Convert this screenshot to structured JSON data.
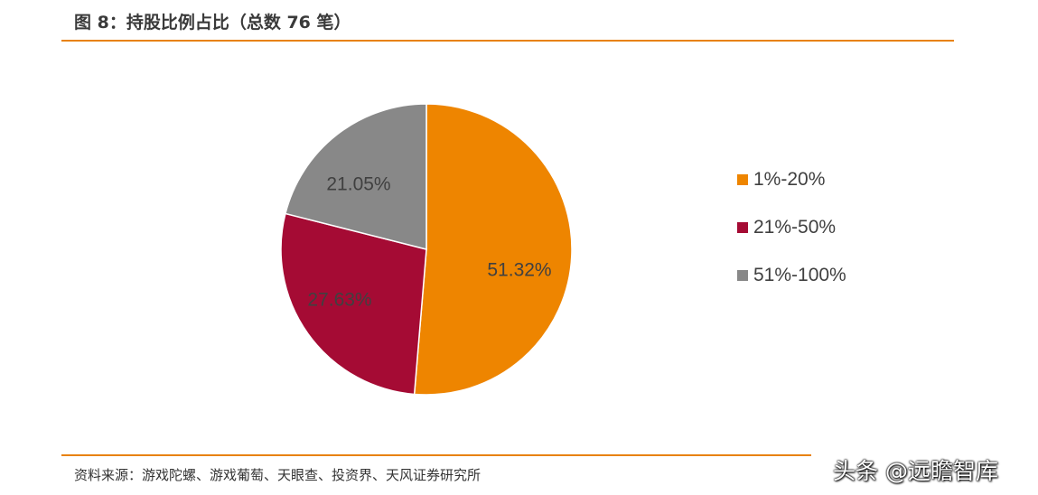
{
  "header": {
    "title": "图 8：持股比例占比（总数 76 笔）"
  },
  "footer": {
    "source": "资料来源：游戏陀螺、游戏葡萄、天眼查、投资界、天风证券研究所",
    "watermark": "头条 @远瞻智库"
  },
  "colors": {
    "accent": "#e8820c",
    "series_1": "#ee8500",
    "series_2": "#a50b34",
    "series_3": "#888888"
  },
  "chart_data": {
    "type": "pie",
    "title": "图 8：持股比例占比（总数 76 笔）",
    "categories": [
      "1%-20%",
      "21%-50%",
      "51%-100%"
    ],
    "values": [
      51.32,
      27.63,
      21.05
    ],
    "labels": [
      "51.32%",
      "27.63%",
      "21.05%"
    ],
    "colors": [
      "#ee8500",
      "#a50b34",
      "#888888"
    ],
    "legend_position": "right",
    "start_angle": "12 o'clock",
    "direction": "clockwise"
  }
}
